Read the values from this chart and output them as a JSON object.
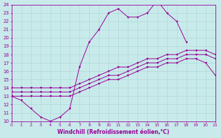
{
  "xlabel": "Windchill (Refroidissement éolien,°C)",
  "background_color": "#c8eaea",
  "grid_color": "#b0d8d8",
  "line_color": "#990099",
  "xlim": [
    0,
    21
  ],
  "ylim": [
    10,
    24
  ],
  "xticks": [
    0,
    1,
    2,
    3,
    4,
    5,
    6,
    7,
    8,
    9,
    10,
    11,
    12,
    13,
    14,
    15,
    16,
    17,
    18,
    19,
    20,
    21
  ],
  "yticks": [
    10,
    11,
    12,
    13,
    14,
    15,
    16,
    17,
    18,
    19,
    20,
    21,
    22,
    23,
    24
  ],
  "series": [
    {
      "x": [
        0,
        1,
        2,
        3,
        4,
        5,
        6,
        7,
        8,
        9,
        10,
        11,
        12,
        13,
        14,
        15,
        16,
        17,
        18
      ],
      "y": [
        13.0,
        12.5,
        11.5,
        10.5,
        10.0,
        10.5,
        11.5,
        16.5,
        19.5,
        21.0,
        23.0,
        23.5,
        22.5,
        22.5,
        23.0,
        24.5,
        23.0,
        22.0,
        19.5
      ]
    },
    {
      "x": [
        0,
        1,
        2,
        3,
        4,
        5,
        6,
        7,
        8,
        9,
        10,
        11,
        12,
        13,
        14,
        15,
        16,
        17,
        18,
        19,
        20,
        21
      ],
      "y": [
        14.0,
        14.0,
        14.0,
        14.0,
        14.0,
        14.0,
        14.0,
        14.5,
        15.0,
        15.5,
        16.0,
        16.5,
        16.5,
        17.0,
        17.5,
        17.5,
        18.0,
        18.0,
        18.5,
        18.5,
        18.5,
        18.0
      ]
    },
    {
      "x": [
        0,
        1,
        2,
        3,
        4,
        5,
        6,
        7,
        8,
        9,
        10,
        11,
        12,
        13,
        14,
        15,
        16,
        17,
        18,
        19,
        20,
        21
      ],
      "y": [
        13.5,
        13.5,
        13.5,
        13.5,
        13.5,
        13.5,
        13.5,
        14.0,
        14.5,
        15.0,
        15.5,
        15.5,
        16.0,
        16.5,
        17.0,
        17.0,
        17.5,
        17.5,
        18.0,
        18.0,
        18.0,
        17.5
      ]
    },
    {
      "x": [
        0,
        1,
        2,
        3,
        4,
        5,
        6,
        7,
        8,
        9,
        10,
        11,
        12,
        13,
        14,
        15,
        16,
        17,
        18,
        19,
        20,
        21
      ],
      "y": [
        13.0,
        13.0,
        13.0,
        13.0,
        13.0,
        13.0,
        13.0,
        13.5,
        14.0,
        14.5,
        15.0,
        15.0,
        15.5,
        16.0,
        16.5,
        16.5,
        17.0,
        17.0,
        17.5,
        17.5,
        17.0,
        15.5
      ]
    }
  ]
}
